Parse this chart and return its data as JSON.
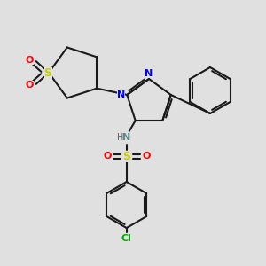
{
  "background_color": "#e0e0e0",
  "bond_color": "#1a1a1a",
  "lw": 1.5,
  "atom_colors": {
    "S": "#cccc00",
    "O": "#ff0000",
    "N": "#0000ff",
    "NH_label": "#5c8a8a",
    "H": "#606060",
    "Cl": "#00aa00",
    "C": "#1a1a1a"
  }
}
